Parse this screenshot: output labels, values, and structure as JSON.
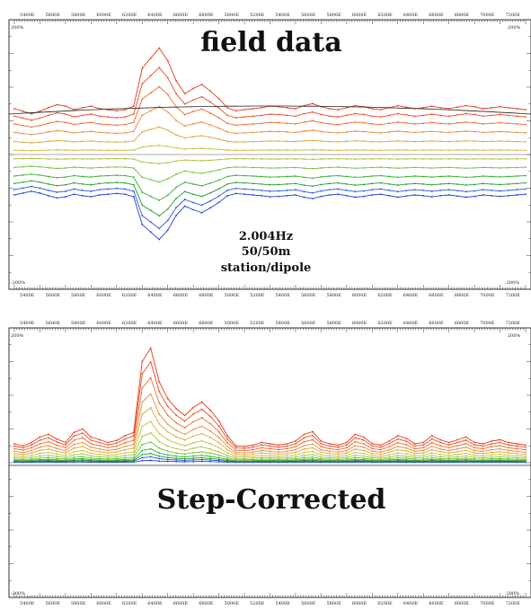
{
  "chart_data": [
    {
      "type": "line",
      "title": "field data",
      "annotation": [
        "2.004Hz",
        "50/50m",
        "station/dipole"
      ],
      "x_tick_labels": [
        "5400E",
        "5600E",
        "5800E",
        "6000E",
        "6200E",
        "6400E",
        "6600E",
        "6800E",
        "5000E",
        "5200E",
        "5400E",
        "5600E",
        "5800E",
        "6000E",
        "6200E",
        "6400E",
        "6600E",
        "6800E",
        "7000E",
        "7200E"
      ],
      "y_labels": {
        "top": "200%",
        "bottom": "-200%"
      },
      "ylim": [
        -200,
        200
      ],
      "grid": false,
      "series_colors": [
        "#1f3fd6",
        "#2a55e0",
        "#1d9e2a",
        "#36b02c",
        "#6cc13a",
        "#a8c23a",
        "#c9be33",
        "#d8a83a",
        "#e88a3a",
        "#ee6a30",
        "#f04a25",
        "#e33a1c"
      ],
      "profile": [
        40,
        35,
        30,
        35,
        42,
        48,
        45,
        38,
        42,
        45,
        40,
        38,
        36,
        38,
        45,
        120,
        140,
        160,
        135,
        95,
        70,
        80,
        88,
        75,
        60,
        42,
        36,
        38,
        40,
        42,
        45,
        44,
        42,
        40,
        46,
        50,
        44,
        40,
        38,
        42,
        46,
        44,
        40,
        38,
        42,
        46,
        43,
        40,
        42,
        45,
        42,
        40,
        43,
        46,
        44,
        40,
        42,
        44,
        42,
        40,
        38
      ],
      "series": [
        {
          "name": "",
          "offset": -38,
          "scale": -0.55
        },
        {
          "name": "",
          "offset": -33,
          "scale": -0.48
        },
        {
          "name": "",
          "offset": -27,
          "scale": -0.4
        },
        {
          "name": "",
          "offset": -20,
          "scale": -0.3
        },
        {
          "name": "",
          "offset": -12,
          "scale": -0.18
        },
        {
          "name": "",
          "offset": -4,
          "scale": -0.06
        },
        {
          "name": "",
          "offset": 4,
          "scale": 0.06
        },
        {
          "name": "",
          "offset": 12,
          "scale": 0.18
        },
        {
          "name": "",
          "offset": 20,
          "scale": 0.32
        },
        {
          "name": "",
          "offset": 27,
          "scale": 0.46
        },
        {
          "name": "",
          "offset": 33,
          "scale": 0.6
        },
        {
          "name": "",
          "offset": 38,
          "scale": 0.75
        }
      ],
      "curve": {
        "left": 60,
        "peak": 72,
        "right": 60
      }
    },
    {
      "type": "line",
      "title": "Step-Corrected",
      "x_tick_labels": [
        "5400E",
        "5600E",
        "5800E",
        "6000E",
        "6200E",
        "6400E",
        "6600E",
        "6800E",
        "5000E",
        "5200E",
        "5400E",
        "5600E",
        "5800E",
        "6000E",
        "6200E",
        "6400E",
        "6600E",
        "6800E",
        "7000E",
        "7200E"
      ],
      "y_labels": {
        "top": "200%",
        "bottom": "-200%"
      },
      "ylim": [
        -200,
        200
      ],
      "grid": false,
      "series_colors": [
        "#1f3fd6",
        "#2a55e0",
        "#1d9e2a",
        "#36b02c",
        "#6cc13a",
        "#a8c23a",
        "#c9be33",
        "#d8a83a",
        "#e88a3a",
        "#ee6a30",
        "#f04a25",
        "#e33a1c"
      ],
      "profile": [
        28,
        25,
        30,
        38,
        42,
        35,
        30,
        45,
        50,
        38,
        34,
        30,
        33,
        40,
        45,
        150,
        170,
        120,
        95,
        80,
        70,
        82,
        90,
        78,
        62,
        40,
        25,
        24,
        26,
        30,
        28,
        26,
        28,
        32,
        42,
        46,
        32,
        28,
        26,
        30,
        42,
        38,
        28,
        26,
        32,
        40,
        36,
        28,
        30,
        40,
        34,
        30,
        34,
        38,
        30,
        28,
        32,
        34,
        30,
        28,
        26
      ],
      "series": [
        {
          "name": "",
          "offset": 0,
          "scale": 0.02
        },
        {
          "name": "",
          "offset": 0,
          "scale": 0.05
        },
        {
          "name": "",
          "offset": 0,
          "scale": 0.08
        },
        {
          "name": "",
          "offset": 0,
          "scale": 0.12
        },
        {
          "name": "",
          "offset": 0,
          "scale": 0.18
        },
        {
          "name": "",
          "offset": 0,
          "scale": 0.26
        },
        {
          "name": "",
          "offset": 0,
          "scale": 0.36
        },
        {
          "name": "",
          "offset": 0,
          "scale": 0.48
        },
        {
          "name": "",
          "offset": 0,
          "scale": 0.6
        },
        {
          "name": "",
          "offset": 0,
          "scale": 0.74
        },
        {
          "name": "",
          "offset": 0,
          "scale": 0.88
        },
        {
          "name": "",
          "offset": 0,
          "scale": 1.0
        }
      ]
    }
  ]
}
